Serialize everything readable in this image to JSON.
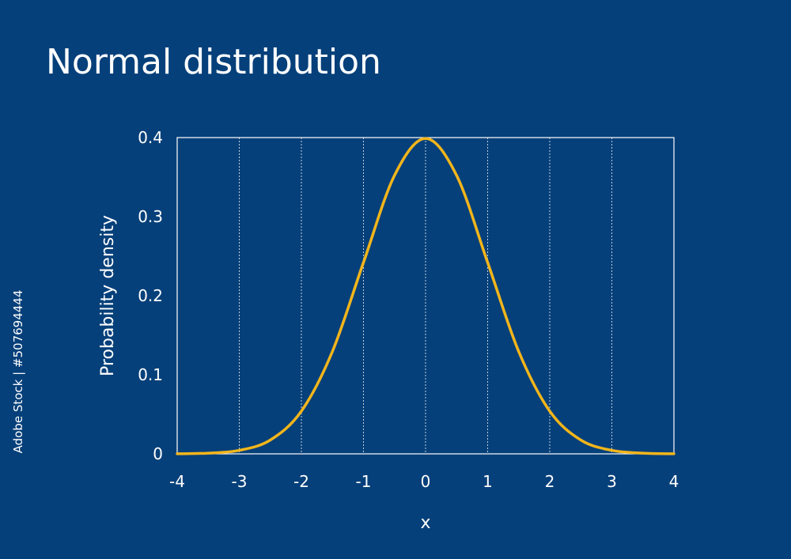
{
  "title": "Normal distribution",
  "stock_id": "Adobe Stock | #507694444",
  "colors": {
    "background": "#06407a",
    "curve": "#f2b51b",
    "axes": "#ffffff",
    "text": "#ffffff"
  },
  "chart_data": {
    "type": "line",
    "title": "Normal distribution",
    "xlabel": "x",
    "ylabel": "Probability density",
    "xlim": [
      -4,
      4
    ],
    "ylim": [
      0,
      0.4
    ],
    "xticks": [
      "-4",
      "-3",
      "-2",
      "-1",
      "0",
      "1",
      "2",
      "3",
      "4"
    ],
    "yticks": [
      "0",
      "0.1",
      "0.2",
      "0.3",
      "0.4"
    ],
    "vertical_grid": true,
    "horizontal_grid": false,
    "legend": "none",
    "series": [
      {
        "x": [
          -4,
          -3.5,
          -3,
          -2.5,
          -2,
          -1.5,
          -1,
          -0.5,
          0,
          0.5,
          1,
          1.5,
          2,
          2.5,
          3,
          3.5,
          4
        ],
        "y": [
          0.0001,
          0.0009,
          0.0044,
          0.0175,
          0.054,
          0.1295,
          0.242,
          0.3521,
          0.3989,
          0.3521,
          0.242,
          0.1295,
          0.054,
          0.0175,
          0.0044,
          0.0009,
          0.0001
        ]
      }
    ]
  }
}
